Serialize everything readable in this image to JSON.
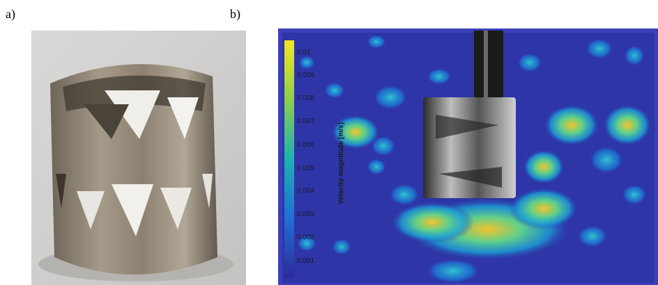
{
  "panels": {
    "a": {
      "label": "a)"
    },
    "b": {
      "label": "b)",
      "colorbar": {
        "title": "Velocity magnitude [m/s]",
        "ticks": [
          "0.01",
          "0.009",
          "0.008",
          "0.007",
          "0.006",
          "0.005",
          "0.004",
          "0.003",
          "0.002",
          "0.001"
        ]
      }
    }
  }
}
